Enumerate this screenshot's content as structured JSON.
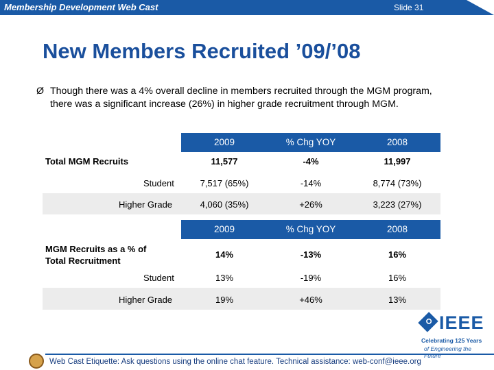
{
  "header": {
    "left_text": "Membership Development Web Cast",
    "slide_label": "Slide 31"
  },
  "title": "New Members Recruited ’09/’08",
  "bullet": {
    "arrow": "Ø",
    "text": "Though there was a 4% overall decline in members recruited through the MGM program, there was a significant increase (26%) in higher grade recruitment through MGM."
  },
  "table1": {
    "headers": [
      "2009",
      "% Chg YOY",
      "2008"
    ],
    "total_label": "Total MGM Recruits",
    "total": [
      "11,577",
      "-4%",
      "11,997"
    ],
    "rows": [
      {
        "label": "Student",
        "values": [
          "7,517 (65%)",
          "-14%",
          "8,774 (73%)"
        ]
      },
      {
        "label": "Higher Grade",
        "values": [
          "4,060 (35%)",
          "+26%",
          "3,223 (27%)"
        ]
      }
    ]
  },
  "table2": {
    "headers": [
      "2009",
      "% Chg YOY",
      "2008"
    ],
    "total_label_line1": "MGM Recruits as a % of",
    "total_label_line2": "Total Recruitment",
    "total": [
      "14%",
      "-13%",
      "16%"
    ],
    "rows": [
      {
        "label": "Student",
        "values": [
          "13%",
          "-19%",
          "16%"
        ]
      },
      {
        "label": "Higher Grade",
        "values": [
          "19%",
          "+46%",
          "13%"
        ]
      }
    ]
  },
  "logo": {
    "word": "IEEE",
    "line1": "Celebrating 125 Years",
    "line2": "of Engineering the Future"
  },
  "footer": {
    "text": "Web Cast Etiquette:  Ask questions using the online chat feature.  Technical assistance: web-conf@ieee.org"
  },
  "colors": {
    "brand_blue": "#1a5aa6",
    "title_blue": "#1a4f9c",
    "row_gray": "#ececec"
  }
}
